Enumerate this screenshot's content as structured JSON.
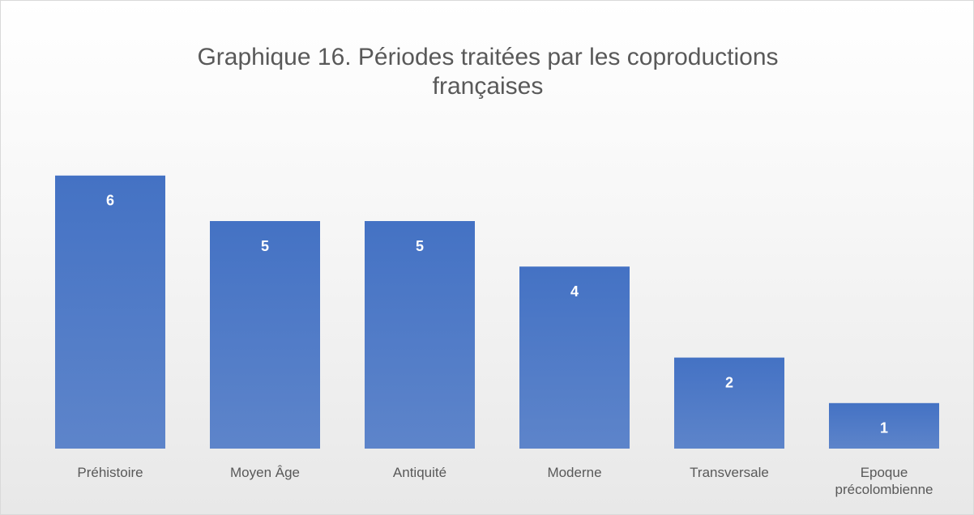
{
  "chart_data": {
    "type": "bar",
    "title": "Graphique 16. Périodes traitées par les coproductions françaises",
    "categories": [
      "Préhistoire",
      "Moyen Âge",
      "Antiquité",
      "Moderne",
      "Transversale",
      "Epoque précolombienne"
    ],
    "values": [
      6,
      5,
      5,
      4,
      2,
      1
    ],
    "color": "#4472c4"
  }
}
